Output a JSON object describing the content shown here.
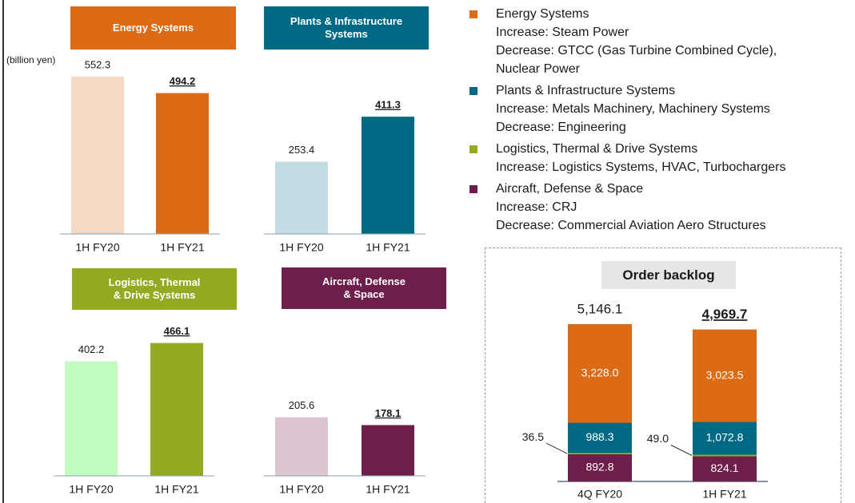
{
  "unit_label": "(billion yen)",
  "chart_data": [
    {
      "type": "bar",
      "title": "Energy Systems",
      "colors": [
        "#f6d9c5",
        "#dd6b16"
      ],
      "categories": [
        "1H FY20",
        "1H FY21"
      ],
      "values": [
        552.3,
        494.2
      ]
    },
    {
      "type": "bar",
      "title": "Plants & Infrastructure\nSystems",
      "colors": [
        "#c3dbe3",
        "#006a85"
      ],
      "categories": [
        "1H FY20",
        "1H FY21"
      ],
      "values": [
        253.4,
        411.3
      ]
    },
    {
      "type": "bar",
      "title": "Logistics, Thermal\n& Drive Systems",
      "colors": [
        "#c2fdc0",
        "#93ab22"
      ],
      "categories": [
        "1H FY20",
        "1H FY21"
      ],
      "values": [
        402.2,
        466.1
      ]
    },
    {
      "type": "bar",
      "title": "Aircraft, Defense\n& Space",
      "colors": [
        "#dcc4d0",
        "#6d1e4a"
      ],
      "categories": [
        "1H FY20",
        "1H FY21"
      ],
      "values": [
        205.6,
        178.1
      ]
    },
    {
      "type": "stacked_bar",
      "title": "Order backlog",
      "categories": [
        "4Q FY20",
        "1H FY21"
      ],
      "series": [
        {
          "name": "Aircraft, Defense & Space",
          "color": "#6d1e4a",
          "values": [
            892.8,
            824.1
          ],
          "value_labels": [
            "892.8",
            "824.1"
          ]
        },
        {
          "name": "Logistics, Thermal & Drive Systems",
          "color": "#93ab22",
          "values": [
            36.5,
            49.0
          ],
          "value_labels": [
            "36.5",
            "49.0"
          ]
        },
        {
          "name": "Plants & Infrastructure Systems",
          "color": "#006a85",
          "values": [
            988.3,
            1072.8
          ],
          "value_labels": [
            "988.3",
            "1,072.8"
          ]
        },
        {
          "name": "Energy Systems",
          "color": "#dd6b16",
          "values": [
            3228.0,
            3023.5
          ],
          "value_labels": [
            "3,228.0",
            "3,023.5"
          ]
        }
      ],
      "totals": [
        5146.1,
        4969.7
      ],
      "total_labels": [
        "5,146.1",
        "4,969.7"
      ]
    }
  ],
  "legend_notes": [
    [
      "Increase: Steam Power",
      "Decrease: GTCC (Gas Turbine Combined Cycle),",
      "Nuclear Power"
    ],
    [
      "Increase: Metals Machinery, Machinery Systems",
      "Decrease: Engineering"
    ],
    [
      "Increase: Logistics Systems, HVAC, Turbochargers"
    ],
    [
      "Increase: CRJ",
      "Decrease: Commercial Aviation Aero Structures"
    ]
  ]
}
